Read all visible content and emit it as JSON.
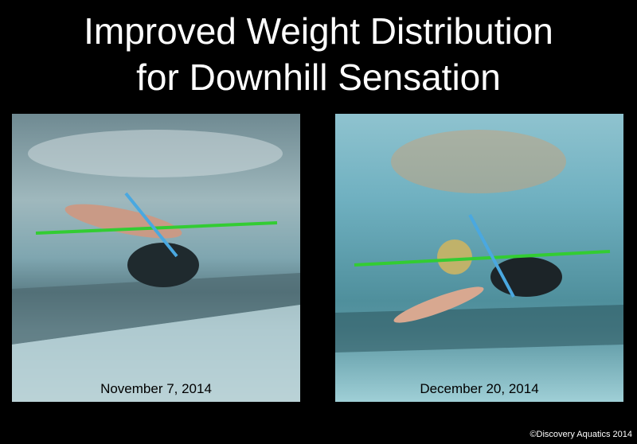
{
  "slide": {
    "title_line1": "Improved Weight Distribution",
    "title_line2": "for Downhill Sensation",
    "copyright": "©Discovery Aquatics 2014"
  },
  "photos": [
    {
      "caption": "November 7, 2014"
    },
    {
      "caption": "December 20, 2014"
    }
  ],
  "colors": {
    "background": "#000000",
    "horizontal_line": "#33cc33",
    "body_axis_line": "#4aa8e0"
  }
}
